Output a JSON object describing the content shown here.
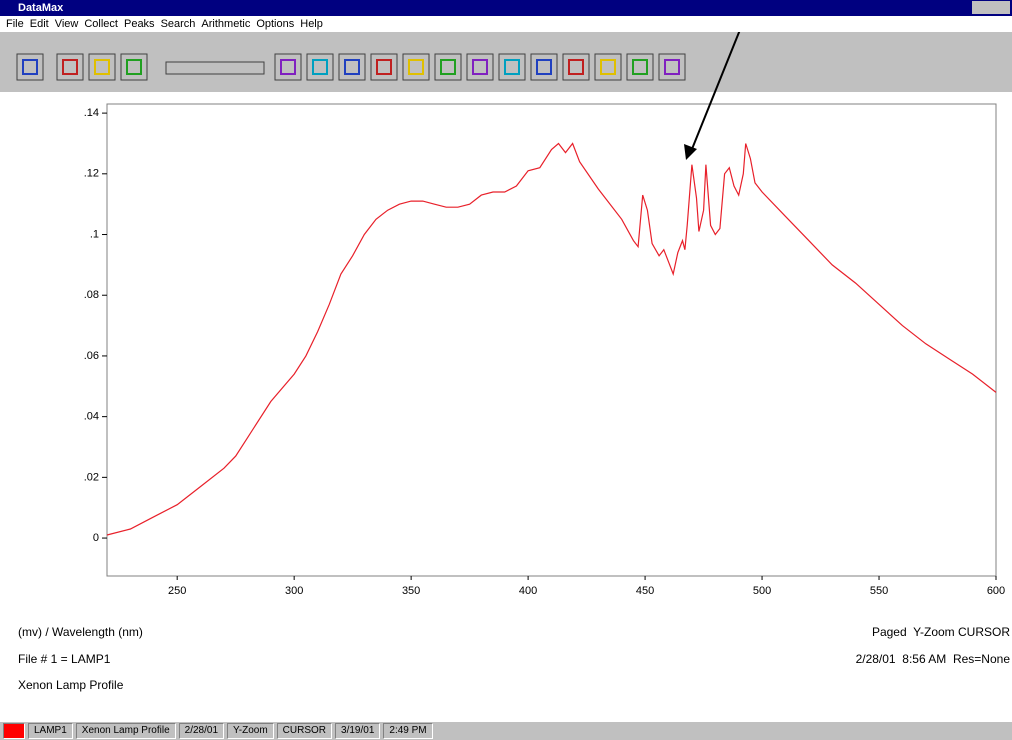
{
  "window_title": "DataMax",
  "menu": [
    "File",
    "Edit",
    "View",
    "Collect",
    "Peaks",
    "Search",
    "Arithmetic",
    "Options",
    "Help"
  ],
  "chart_data": {
    "type": "line",
    "xlabel": "(mv) / Wavelength (nm)",
    "x": [
      220,
      230,
      240,
      250,
      260,
      270,
      275,
      280,
      290,
      300,
      305,
      310,
      315,
      320,
      325,
      330,
      335,
      340,
      345,
      350,
      355,
      360,
      365,
      370,
      375,
      380,
      385,
      390,
      395,
      400,
      405,
      410,
      413,
      416,
      419,
      422,
      430,
      440,
      445,
      447,
      449,
      451,
      453,
      456,
      458,
      460,
      462,
      464,
      466,
      467,
      468,
      470,
      472,
      473,
      475,
      476,
      478,
      480,
      482,
      484,
      486,
      488,
      490,
      492,
      493,
      495,
      497,
      500,
      510,
      520,
      530,
      540,
      550,
      560,
      570,
      580,
      590,
      600
    ],
    "values": [
      0.001,
      0.003,
      0.007,
      0.011,
      0.017,
      0.023,
      0.027,
      0.033,
      0.045,
      0.054,
      0.06,
      0.068,
      0.077,
      0.087,
      0.093,
      0.1,
      0.105,
      0.108,
      0.11,
      0.111,
      0.111,
      0.11,
      0.109,
      0.109,
      0.11,
      0.113,
      0.114,
      0.114,
      0.116,
      0.121,
      0.122,
      0.128,
      0.13,
      0.127,
      0.13,
      0.124,
      0.115,
      0.105,
      0.098,
      0.096,
      0.113,
      0.108,
      0.097,
      0.093,
      0.095,
      0.091,
      0.087,
      0.094,
      0.098,
      0.095,
      0.103,
      0.123,
      0.112,
      0.101,
      0.108,
      0.123,
      0.103,
      0.1,
      0.102,
      0.12,
      0.122,
      0.116,
      0.113,
      0.12,
      0.13,
      0.125,
      0.117,
      0.114,
      0.106,
      0.098,
      0.09,
      0.084,
      0.077,
      0.07,
      0.064,
      0.059,
      0.054,
      0.048
    ],
    "color": "#e8202a",
    "xlim": [
      220,
      600
    ],
    "xticks": [
      250,
      300,
      350,
      400,
      450,
      500,
      550,
      600
    ],
    "ylim": [
      -0.0125,
      0.143
    ],
    "yticks": [
      0,
      {
        "value": 0.02,
        "label": ".02"
      },
      {
        "value": 0.04,
        "label": ".04"
      },
      {
        "value": 0.06,
        "label": ".06"
      },
      {
        "value": 0.08,
        "label": ".08"
      },
      {
        "value": 0.1,
        "label": ".1"
      },
      {
        "value": 0.12,
        "label": ".12"
      },
      {
        "value": 0.14,
        "label": ".14"
      }
    ]
  },
  "info": {
    "file": "File # 1 = LAMP1",
    "description": "Xenon Lamp Profile",
    "mode": "Paged  Y-Zoom CURSOR",
    "stamp": "2/28/01  8:56 AM  Res=None"
  },
  "status": [
    "LAMP1",
    "Xenon Lamp Profile",
    "2/28/01",
    "Y-Zoom",
    "CURSOR",
    "3/19/01",
    "2:49 PM"
  ]
}
